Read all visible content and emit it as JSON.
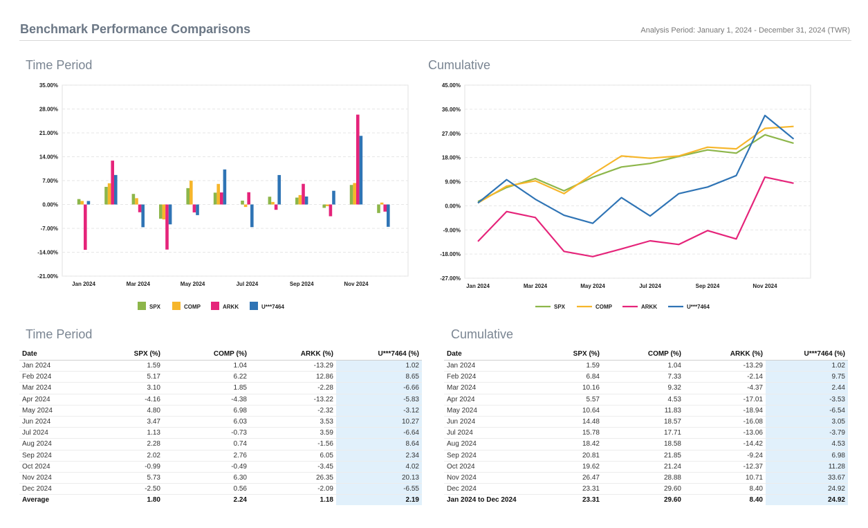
{
  "header": {
    "title": "Benchmark Performance Comparisons",
    "period": "Analysis Period: January 1, 2024 - December 31, 2024 (TWR)"
  },
  "sections": {
    "tp_chart": "Time Period",
    "cum_chart": "Cumulative",
    "tp_table": "Time Period",
    "cum_table": "Cumulative"
  },
  "colors": {
    "SPX": "#8db64a",
    "COMP": "#f6b62b",
    "ARKK": "#e5247a",
    "ACCT": "#2f74b5"
  },
  "chart_data": [
    {
      "type": "bar",
      "categories": [
        "Jan 2024",
        "Feb 2024",
        "Mar 2024",
        "Apr 2024",
        "May 2024",
        "Jun 2024",
        "Jul 2024",
        "Aug 2024",
        "Sep 2024",
        "Oct 2024",
        "Nov 2024",
        "Dec 2024"
      ],
      "tick_labels": [
        "Jan 2024",
        "",
        "Mar 2024",
        "",
        "May 2024",
        "",
        "Jul 2024",
        "",
        "Sep 2024",
        "",
        "Nov 2024",
        ""
      ],
      "y_ticks": [
        "35.00%",
        "28.00%",
        "21.00%",
        "14.00%",
        "7.00%",
        "0.00%",
        "-7.00%",
        "-14.00%",
        "-21.00%"
      ],
      "ylim": [
        -21,
        35
      ],
      "series": [
        {
          "name": "SPX",
          "values": [
            1.59,
            5.17,
            3.1,
            -4.16,
            4.8,
            3.47,
            1.13,
            2.28,
            2.02,
            -0.99,
            5.73,
            -2.5
          ]
        },
        {
          "name": "COMP",
          "values": [
            1.04,
            6.22,
            1.85,
            -4.38,
            6.98,
            6.03,
            -0.73,
            0.74,
            2.76,
            -0.49,
            6.3,
            0.56
          ]
        },
        {
          "name": "ARKK",
          "values": [
            -13.29,
            12.86,
            -2.28,
            -13.22,
            -2.32,
            3.53,
            3.59,
            -1.56,
            6.05,
            -3.45,
            26.35,
            -2.09
          ]
        },
        {
          "name": "U***7464",
          "values": [
            1.02,
            8.65,
            -6.66,
            -5.83,
            -3.12,
            10.27,
            -6.64,
            8.64,
            2.34,
            4.02,
            20.13,
            -6.55
          ]
        }
      ],
      "grid": true,
      "legend": "bottom"
    },
    {
      "type": "line",
      "categories": [
        "Jan 2024",
        "Feb 2024",
        "Mar 2024",
        "Apr 2024",
        "May 2024",
        "Jun 2024",
        "Jul 2024",
        "Aug 2024",
        "Sep 2024",
        "Oct 2024",
        "Nov 2024",
        "Dec 2024"
      ],
      "tick_labels": [
        "Jan 2024",
        "",
        "Mar 2024",
        "",
        "May 2024",
        "",
        "Jul 2024",
        "",
        "Sep 2024",
        "",
        "Nov 2024",
        ""
      ],
      "y_ticks": [
        "45.00%",
        "36.00%",
        "27.00%",
        "18.00%",
        "9.00%",
        "0.00%",
        "-9.00%",
        "-18.00%",
        "-27.00%"
      ],
      "ylim": [
        -27,
        45
      ],
      "series": [
        {
          "name": "SPX",
          "values": [
            1.59,
            6.84,
            10.16,
            5.57,
            10.64,
            14.48,
            15.78,
            18.42,
            20.81,
            19.62,
            26.47,
            23.31
          ]
        },
        {
          "name": "COMP",
          "values": [
            1.04,
            7.33,
            9.32,
            4.53,
            11.83,
            18.57,
            17.71,
            18.58,
            21.85,
            21.24,
            28.88,
            29.6
          ]
        },
        {
          "name": "ARKK",
          "values": [
            -13.29,
            -2.14,
            -4.37,
            -17.01,
            -18.94,
            -16.08,
            -13.06,
            -14.42,
            -9.24,
            -12.37,
            10.71,
            8.4
          ]
        },
        {
          "name": "U***7464",
          "values": [
            1.02,
            9.75,
            2.44,
            -3.53,
            -6.54,
            3.05,
            -3.79,
            4.53,
            6.98,
            11.28,
            33.67,
            24.92
          ]
        }
      ],
      "grid": true,
      "legend": "bottom"
    }
  ],
  "tp_table": {
    "headers": [
      "Date",
      "SPX (%)",
      "COMP (%)",
      "ARKK (%)",
      "U***7464 (%)"
    ],
    "rows": [
      [
        "Jan 2024",
        "1.59",
        "1.04",
        "-13.29",
        "1.02"
      ],
      [
        "Feb 2024",
        "5.17",
        "6.22",
        "12.86",
        "8.65"
      ],
      [
        "Mar 2024",
        "3.10",
        "1.85",
        "-2.28",
        "-6.66"
      ],
      [
        "Apr 2024",
        "-4.16",
        "-4.38",
        "-13.22",
        "-5.83"
      ],
      [
        "May 2024",
        "4.80",
        "6.98",
        "-2.32",
        "-3.12"
      ],
      [
        "Jun 2024",
        "3.47",
        "6.03",
        "3.53",
        "10.27"
      ],
      [
        "Jul 2024",
        "1.13",
        "-0.73",
        "3.59",
        "-6.64"
      ],
      [
        "Aug 2024",
        "2.28",
        "0.74",
        "-1.56",
        "8.64"
      ],
      [
        "Sep 2024",
        "2.02",
        "2.76",
        "6.05",
        "2.34"
      ],
      [
        "Oct 2024",
        "-0.99",
        "-0.49",
        "-3.45",
        "4.02"
      ],
      [
        "Nov 2024",
        "5.73",
        "6.30",
        "26.35",
        "20.13"
      ],
      [
        "Dec 2024",
        "-2.50",
        "0.56",
        "-2.09",
        "-6.55"
      ]
    ],
    "summary": [
      "Average",
      "1.80",
      "2.24",
      "1.18",
      "2.19"
    ]
  },
  "cum_table": {
    "headers": [
      "Date",
      "SPX (%)",
      "COMP (%)",
      "ARKK (%)",
      "U***7464 (%)"
    ],
    "rows": [
      [
        "Jan 2024",
        "1.59",
        "1.04",
        "-13.29",
        "1.02"
      ],
      [
        "Feb 2024",
        "6.84",
        "7.33",
        "-2.14",
        "9.75"
      ],
      [
        "Mar 2024",
        "10.16",
        "9.32",
        "-4.37",
        "2.44"
      ],
      [
        "Apr 2024",
        "5.57",
        "4.53",
        "-17.01",
        "-3.53"
      ],
      [
        "May 2024",
        "10.64",
        "11.83",
        "-18.94",
        "-6.54"
      ],
      [
        "Jun 2024",
        "14.48",
        "18.57",
        "-16.08",
        "3.05"
      ],
      [
        "Jul 2024",
        "15.78",
        "17.71",
        "-13.06",
        "-3.79"
      ],
      [
        "Aug 2024",
        "18.42",
        "18.58",
        "-14.42",
        "4.53"
      ],
      [
        "Sep 2024",
        "20.81",
        "21.85",
        "-9.24",
        "6.98"
      ],
      [
        "Oct 2024",
        "19.62",
        "21.24",
        "-12.37",
        "11.28"
      ],
      [
        "Nov 2024",
        "26.47",
        "28.88",
        "10.71",
        "33.67"
      ],
      [
        "Dec 2024",
        "23.31",
        "29.60",
        "8.40",
        "24.92"
      ]
    ],
    "summary": [
      "Jan 2024 to Dec 2024",
      "23.31",
      "29.60",
      "8.40",
      "24.92"
    ]
  }
}
